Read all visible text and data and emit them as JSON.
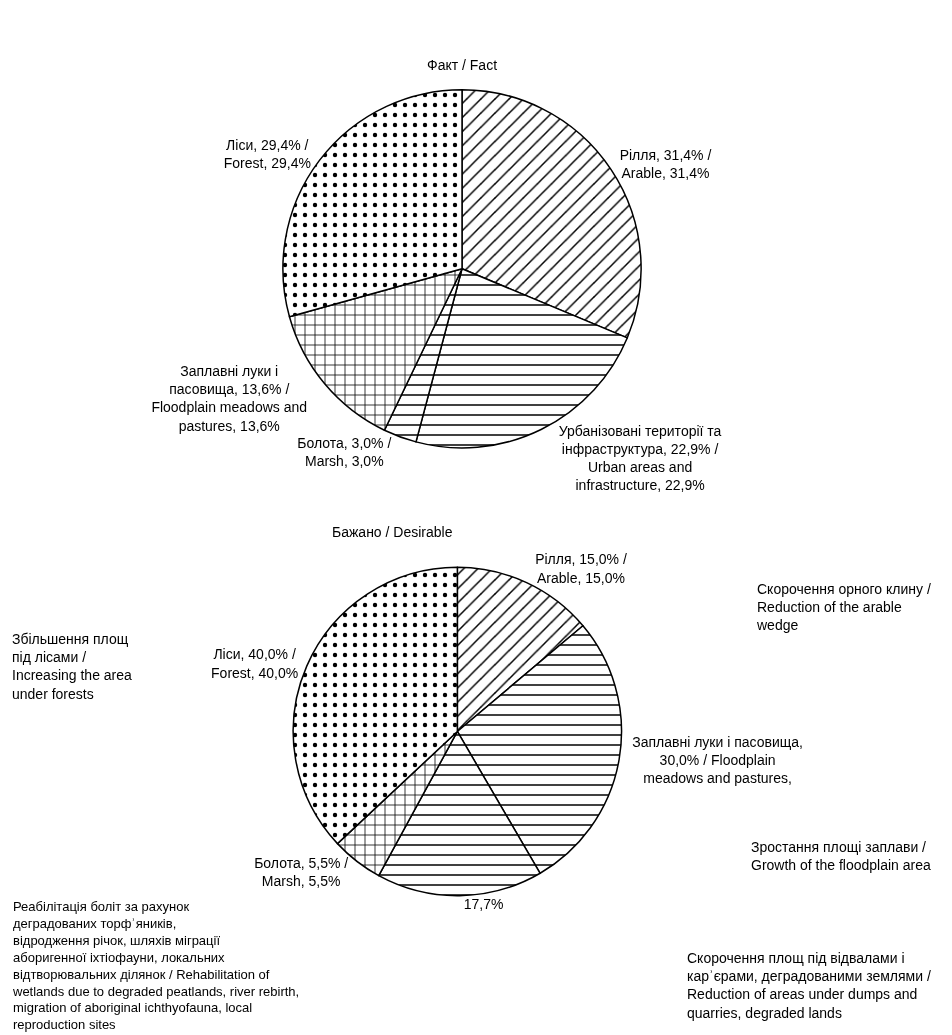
{
  "chart_data": [
    {
      "type": "pie",
      "title": "Факт / Fact",
      "categories": [
        null,
        null,
        null,
        null,
        null
      ],
      "values": [
        31.4,
        22.9,
        3.0,
        13.6,
        29.4
      ],
      "value_labels": [
        "Рілля, 31,4% /\nArable, 31,4%",
        "Урбанізовані території та\nінфраструктура, 22,9% /\nUrban areas and\ninfrastructure, 22,9%",
        "Болота, 3,0% /\nMarsh, 3,0%",
        "Заплавні луки і\nпасовища, 13,6% /\nFloodplain meadows and\npastures, 13,6%",
        "Ліси, 29,4% /\nForest, 29,4%"
      ]
    },
    {
      "type": "pie",
      "title": "Бажано / Desirable",
      "categories": [
        null,
        null,
        null,
        null,
        null
      ],
      "values": [
        15.0,
        30.0,
        17.7,
        5.5,
        40.0
      ],
      "value_labels": [
        "Рілля, 15,0% /\nArable, 15,0%",
        "Заплавні луки і пасовища,\n30,0% / Floodplain\nmeadows and pastures,",
        "17,7%",
        "Болота, 5,5% /\nMarsh, 5,5%",
        "Ліси, 40,0% /\nForest, 40,0%"
      ],
      "annotations": [
        "Скорочення орного клину /\nReduction of the arable\nwedge",
        "Зростання площі заплави /\nGrowth of the floodplain area",
        "Скорочення площ під відвалами і\nкарʾєрами, деградованими землями /\nReduction of areas under dumps and\nquarries, degraded lands",
        "Реабілітація боліт за рахунок\nдеградованих торфʾяників,\nвідродження річок, шляхів міграції\nаборигенної іхтіофауни, локальних\nвідтворювальних ділянок / Rehabilitation of\nwetlands due to degraded peatlands, river rebirth,\nmigration of aboriginal ichthyofauna, local\nreproduction sites",
        "Збільшення площ\nпід лісами /\nIncreasing the area\nunder forests"
      ]
    }
  ]
}
